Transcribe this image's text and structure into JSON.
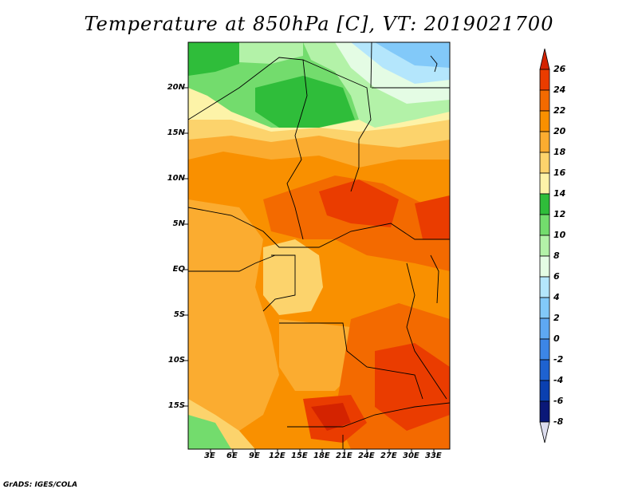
{
  "title": "Temperature at 850hPa [C], VT: 2019021700",
  "credit": "GrADS: IGES/COLA",
  "map": {
    "lon_range": [
      "0E",
      "35E"
    ],
    "lat_range": [
      "19S",
      "24N"
    ],
    "y_ticks": [
      "20N",
      "15N",
      "10N",
      "5N",
      "EQ",
      "5S",
      "10S",
      "15S"
    ],
    "x_ticks": [
      "3E",
      "6E",
      "9E",
      "12E",
      "15E",
      "18E",
      "21E",
      "24E",
      "27E",
      "30E",
      "33E"
    ]
  },
  "colorbar": {
    "labels": [
      "26",
      "24",
      "22",
      "20",
      "18",
      "16",
      "14",
      "12",
      "10",
      "8",
      "6",
      "4",
      "2",
      "0",
      "-2",
      "-4",
      "-6",
      "-8"
    ],
    "colors": [
      "#d42300",
      "#ea3c00",
      "#f36a00",
      "#f99000",
      "#fbac30",
      "#fcd36c",
      "#fdf3a8",
      "#2fbd3a",
      "#73dc6d",
      "#b3f2a8",
      "#e4fce4",
      "#b4e6fc",
      "#82c9f9",
      "#5ea8f2",
      "#3c86e6",
      "#1e62d0",
      "#0a40b0",
      "#0a1878",
      "#ddddee"
    ]
  }
}
